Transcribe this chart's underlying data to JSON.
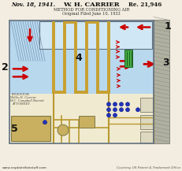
{
  "bg_color": "#f2ede0",
  "header_date": "Nov. 18, 1941.",
  "header_name": "W. H. CARRIER",
  "header_patent": "Re. 21,946",
  "header_method": "METHOD FOR CONDITIONING AIR",
  "header_filed": "Original Filed June 10, 1933",
  "footer_left": "www.explainthatstuff.com",
  "footer_right": "Courtesy US Patent & Trademark Office",
  "chamber_color": "#b8d8ee",
  "coil_color": "#c8a030",
  "border_gray": "#a0a090",
  "arrow_color": "#cc0000",
  "green_color": "#44aa44",
  "blue_color": "#2233bb",
  "pipe_color": "#b89830",
  "bottom_bg": "#f0ead0",
  "machinery_color": "#c8b060",
  "text_dark": "#111111",
  "text_mid": "#333333",
  "label_1": "1",
  "label_2": "2",
  "label_3": "3",
  "label_4": "4",
  "label_5": "5"
}
